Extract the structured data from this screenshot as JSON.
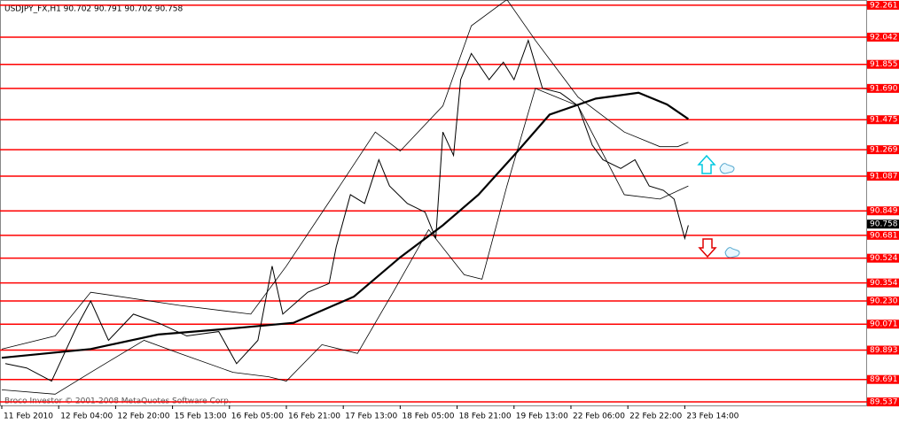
{
  "chart_data": {
    "type": "line",
    "title": "USDJPY_FX,H1  90.702 90.791 90.702 90.758",
    "watermark": "Broco Investor © 2001-2008 MetaQuotes Software Corp.",
    "xlim": [
      -0.5,
      243.25
    ],
    "ylim": [
      89.513,
      92.297
    ],
    "xticks": [
      {
        "value": 0,
        "label": "11 Feb 2010"
      },
      {
        "value": 16,
        "label": "12 Feb 04:00"
      },
      {
        "value": 32,
        "label": "12 Feb 20:00"
      },
      {
        "value": 48,
        "label": "15 Feb 13:00"
      },
      {
        "value": 64,
        "label": "16 Feb 05:00"
      },
      {
        "value": 80,
        "label": "16 Feb 21:00"
      },
      {
        "value": 96,
        "label": "17 Feb 13:00"
      },
      {
        "value": 112,
        "label": "18 Feb 05:00"
      },
      {
        "value": 128,
        "label": "18 Feb 21:00"
      },
      {
        "value": 144,
        "label": "19 Feb 13:00"
      },
      {
        "value": 160,
        "label": "22 Feb 06:00"
      },
      {
        "value": 176,
        "label": "22 Feb 22:00"
      },
      {
        "value": 192,
        "label": "23 Feb 14:00"
      }
    ],
    "yticks": [
      92.261,
      92.042,
      91.855,
      {
        "value": 91.69,
        "label": "91.690"
      },
      91.475,
      91.269,
      91.087,
      90.849,
      90.681,
      90.524,
      90.354,
      {
        "value": 90.23,
        "label": "90.230"
      },
      90.071,
      89.893,
      89.691,
      89.537
    ],
    "level_color": "#ff0000",
    "current_price": 90.758,
    "series": [
      {
        "color": "#000000",
        "width": 1,
        "x": [
          1,
          7,
          14,
          21,
          25,
          30,
          37,
          44,
          52,
          61,
          66,
          72,
          76,
          79,
          86,
          92,
          94,
          98,
          102,
          106,
          109,
          114,
          119,
          122,
          124,
          127,
          129,
          132,
          137,
          141,
          144,
          148,
          152,
          157,
          162,
          166,
          169,
          174,
          178,
          182,
          186,
          189,
          192,
          193
        ],
        "values": [
          89.8,
          89.77,
          89.68,
          90.05,
          90.23,
          89.96,
          90.14,
          90.08,
          89.99,
          90.02,
          89.8,
          89.96,
          90.47,
          90.14,
          90.29,
          90.35,
          90.6,
          90.96,
          90.9,
          91.2,
          91.02,
          90.9,
          90.84,
          90.66,
          91.39,
          91.23,
          91.75,
          91.93,
          91.75,
          91.87,
          91.75,
          92.02,
          91.69,
          91.66,
          91.57,
          91.3,
          91.2,
          91.14,
          91.2,
          91.02,
          90.99,
          90.93,
          90.66,
          90.75
        ]
      },
      {
        "color": "#000000",
        "width": 2.2,
        "x": [
          0,
          25,
          44,
          64,
          82,
          99,
          112,
          124,
          134,
          144,
          154,
          167,
          179,
          187,
          193
        ],
        "values": [
          89.84,
          89.9,
          90.0,
          90.04,
          90.08,
          90.26,
          90.53,
          90.75,
          90.96,
          91.23,
          91.51,
          91.62,
          91.66,
          91.58,
          91.48
        ]
      },
      {
        "color": "#000000",
        "width": 0.8,
        "x": [
          0,
          15,
          25,
          50,
          70,
          80,
          95,
          105,
          112,
          124,
          132,
          142,
          150,
          162,
          175,
          185,
          190,
          193
        ],
        "values": [
          89.9,
          89.99,
          90.29,
          90.2,
          90.14,
          90.47,
          91.02,
          91.39,
          91.26,
          91.57,
          92.12,
          92.3,
          92.02,
          91.63,
          91.39,
          91.29,
          91.29,
          91.32
        ]
      },
      {
        "color": "#000000",
        "width": 0.8,
        "x": [
          0,
          15,
          25,
          40,
          50,
          65,
          75,
          80,
          90,
          100,
          110,
          120,
          130,
          135,
          142,
          150,
          162,
          175,
          185,
          193
        ],
        "values": [
          89.62,
          89.59,
          89.74,
          89.96,
          89.87,
          89.74,
          89.71,
          89.68,
          89.93,
          89.87,
          90.29,
          90.72,
          90.41,
          90.38,
          91.02,
          91.69,
          91.57,
          90.96,
          90.93,
          91.02
        ]
      }
    ]
  }
}
